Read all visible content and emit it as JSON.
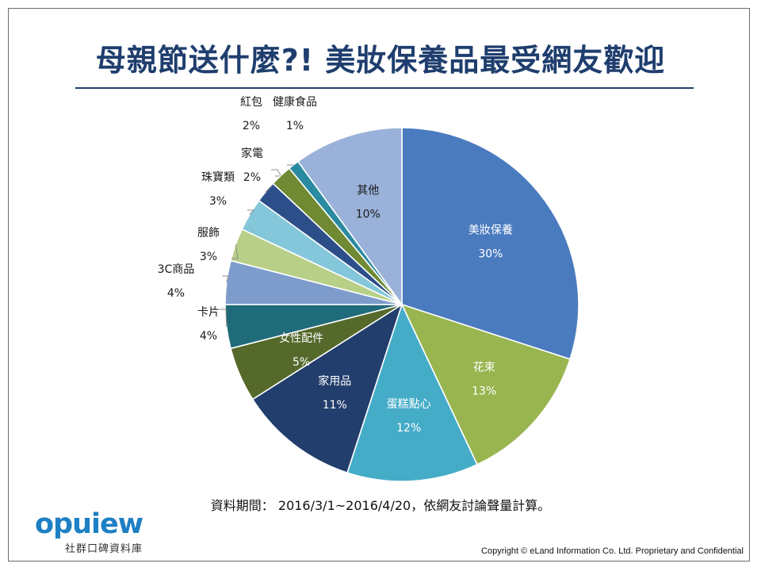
{
  "title": "母親節送什麼?! 美妝保養品最受網友歡迎",
  "source_note": "資料期間： 2016/3/1~2016/4/20，依網友討論聲量計算。",
  "logo": {
    "word": "opuiew",
    "subtitle": "社群口碑資料庫"
  },
  "copyright": "Copyright © eLand Information Co. Ltd. Proprietary and Confidential",
  "chart_data": {
    "type": "pie",
    "title": "母親節送什麼?! 美妝保養品最受網友歡迎",
    "start_angle": "12 o'clock",
    "direction": "clockwise",
    "unit": "%",
    "slices": [
      {
        "label": "美妝保養",
        "value": 30,
        "color": "#4b7bbf",
        "label_inside": true
      },
      {
        "label": "花束",
        "value": 13,
        "color": "#98b550",
        "label_inside": true
      },
      {
        "label": "蛋糕點心",
        "value": 12,
        "color": "#45acc8",
        "label_inside": true
      },
      {
        "label": "家用品",
        "value": 11,
        "color": "#223e6c",
        "label_inside": true
      },
      {
        "label": "女性配件",
        "value": 5,
        "color": "#55692b",
        "label_inside": true
      },
      {
        "label": "卡片",
        "value": 4,
        "color": "#206b7a",
        "label_inside": false
      },
      {
        "label": "3C商品",
        "value": 4,
        "color": "#7d9ccc",
        "label_inside": false
      },
      {
        "label": "服飾",
        "value": 3,
        "color": "#b8cf88",
        "label_inside": false
      },
      {
        "label": "珠寶類",
        "value": 3,
        "color": "#84c6da",
        "label_inside": false
      },
      {
        "label": "家電",
        "value": 2,
        "color": "#2c4f8a",
        "label_inside": false
      },
      {
        "label": "紅包",
        "value": 2,
        "color": "#6f8a32",
        "label_inside": false
      },
      {
        "label": "健康食品",
        "value": 1,
        "color": "#2a8aa0",
        "label_inside": false
      },
      {
        "label": "其他",
        "value": 10,
        "color": "#9ab2d9",
        "label_inside": true
      }
    ]
  }
}
